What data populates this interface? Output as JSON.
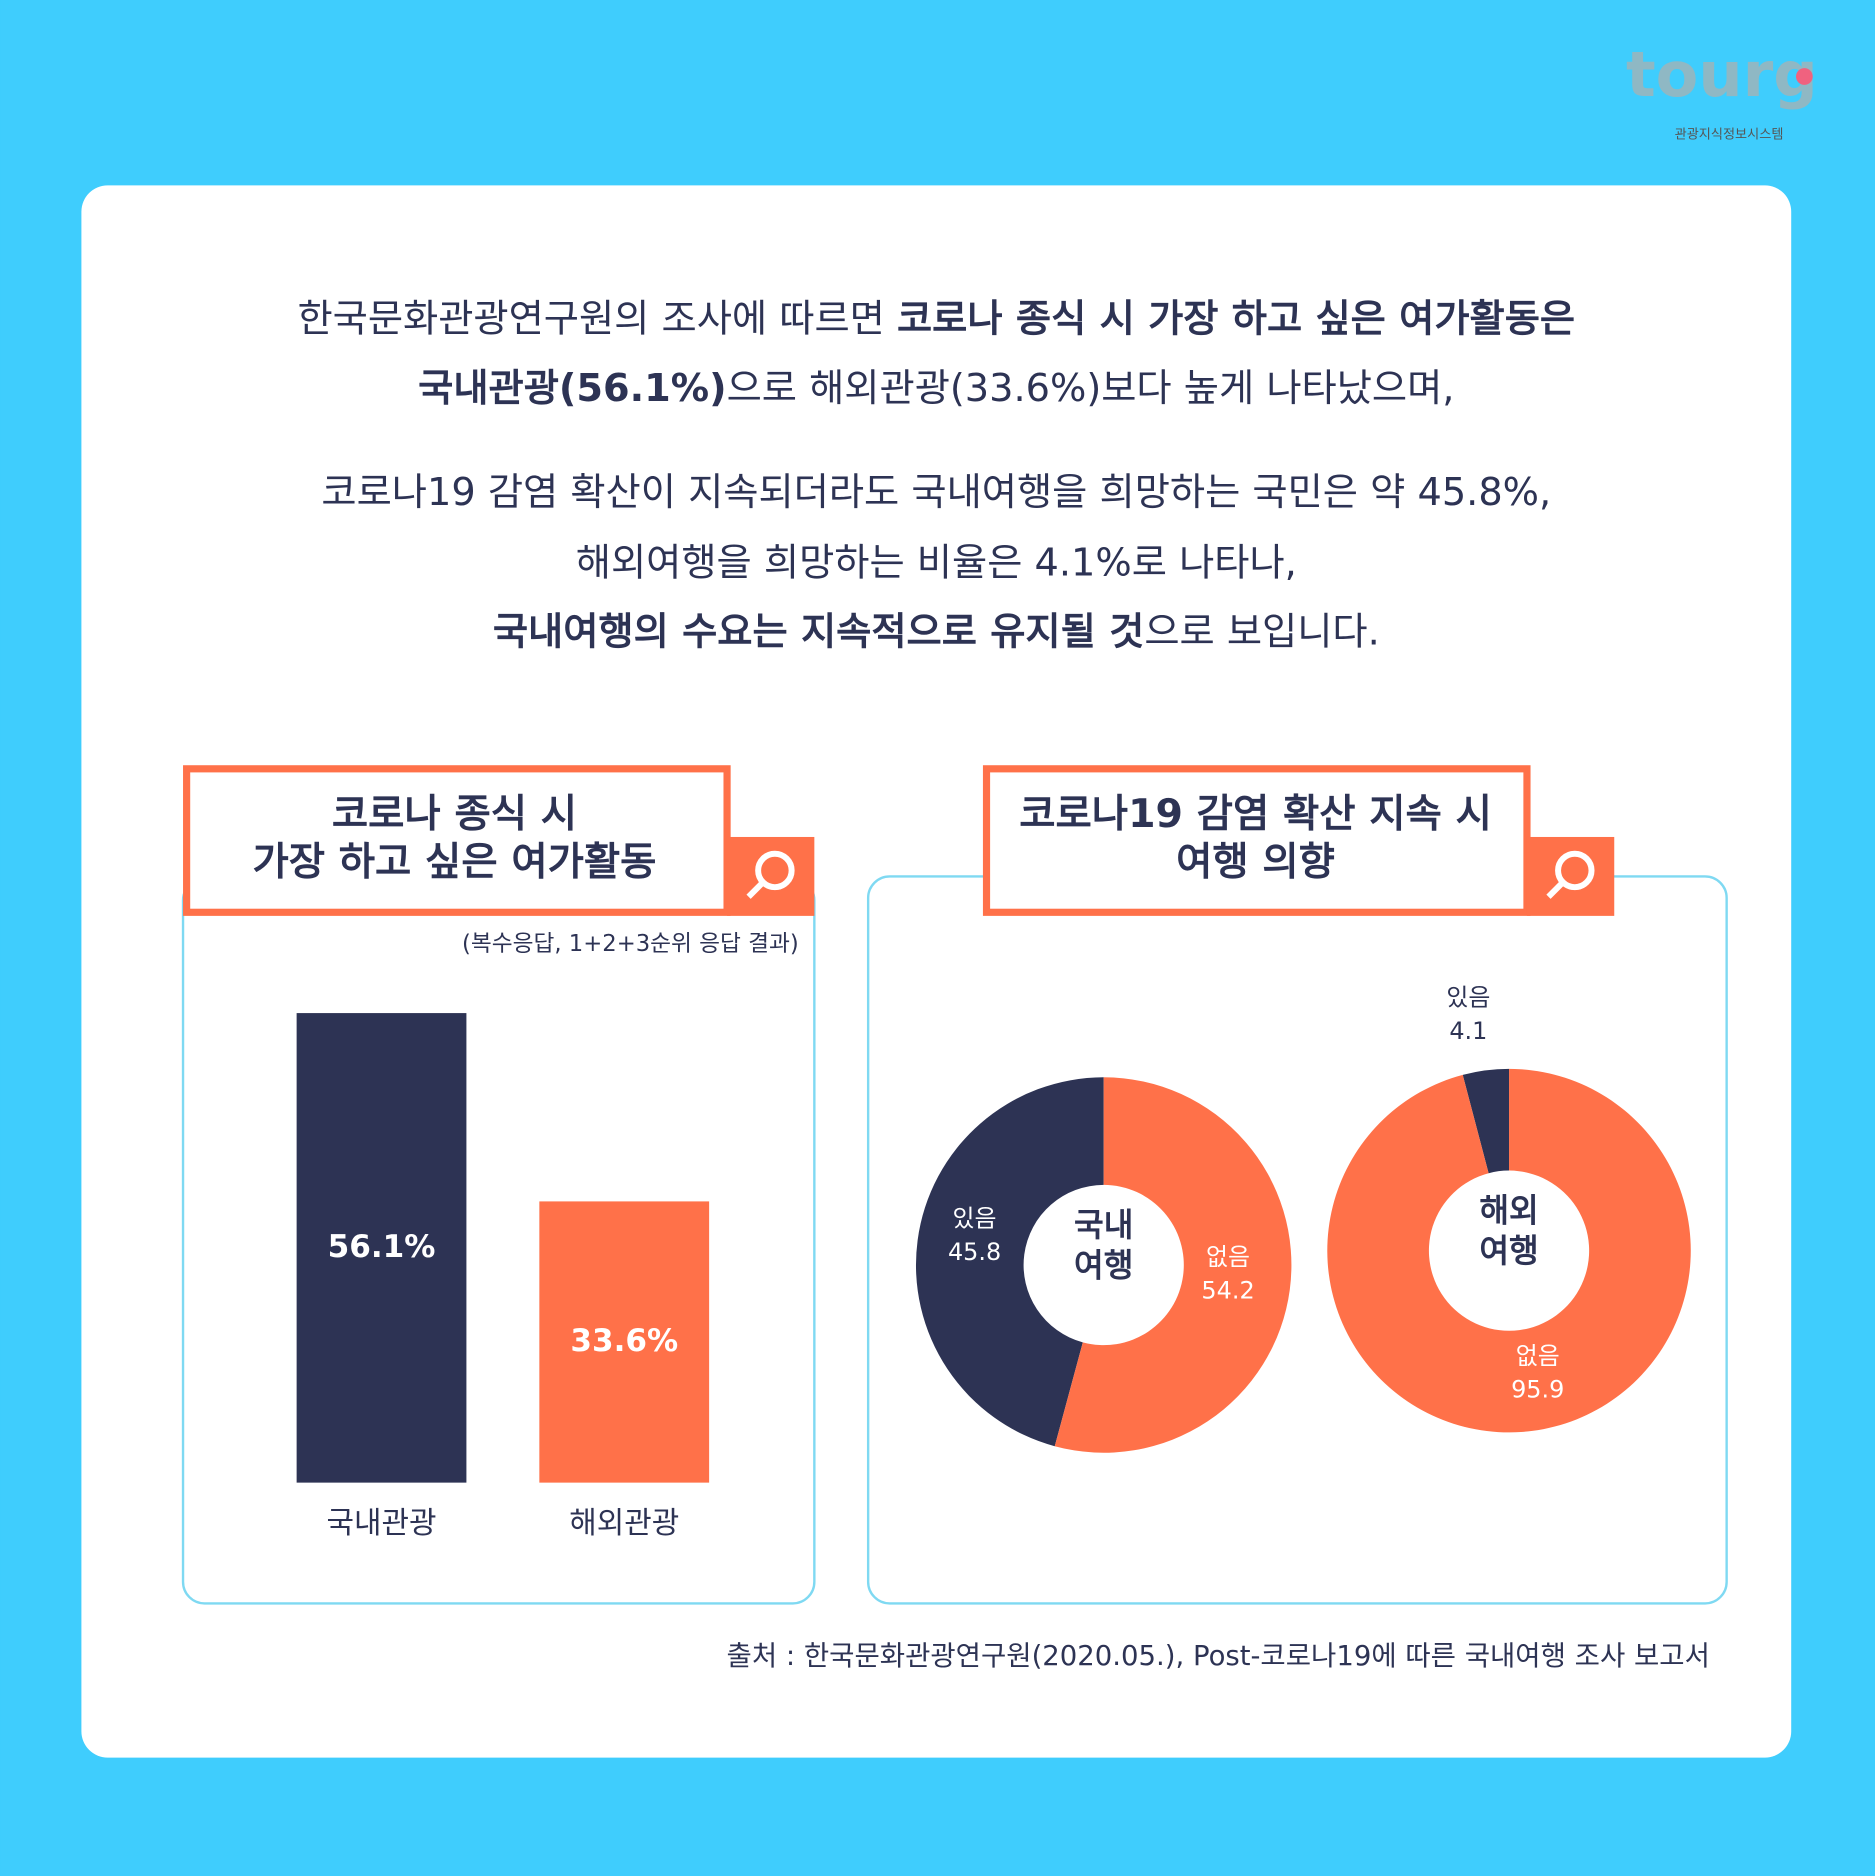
{
  "logo": {
    "wordmark": "tourg",
    "caption": "관광지식정보시스템"
  },
  "intro": {
    "paragraphs": [
      [
        [
          {
            "text": "한국문화관광연구원의 조사에 따르면 "
          },
          {
            "text": "코로나 종식 시 가장 하고 싶은 여가활동은",
            "bold": true
          }
        ],
        [
          {
            "text": "국내관광(56.1%)",
            "bold": true
          },
          {
            "text": "으로 해외관광(33.6%)보다 높게 나타났으며,"
          }
        ]
      ],
      [
        [
          {
            "text": "코로나19 감염 확산이 지속되더라도 국내여행을 희망하는 국민은 약 45.8%,"
          }
        ],
        [
          {
            "text": "해외여행을 희망하는 비율은 4.1%로 나타나,"
          }
        ],
        [
          {
            "text": "국내여행의 수요는 지속적으로 유지될 것",
            "bold": true
          },
          {
            "text": "으로 보입니다."
          }
        ]
      ]
    ]
  },
  "chart_data": [
    {
      "type": "bar",
      "title": [
        "코로나 종식 시",
        "가장 하고 싶은 여가활동"
      ],
      "note": "(복수응답, 1+2+3순위 응답 결과)",
      "categories": [
        "국내관광",
        "해외관광"
      ],
      "values": [
        56.1,
        33.6
      ],
      "value_labels": [
        "56.1%",
        "33.6%"
      ],
      "colors": [
        "#2d3354",
        "#ff7149"
      ]
    },
    {
      "type": "pie",
      "title": [
        "코로나19 감염 확산 지속 시",
        "여행 의향"
      ],
      "colors": [
        "#2d3354",
        "#ff7149"
      ],
      "pies": [
        {
          "center_label": [
            "국내",
            "여행"
          ],
          "categories": [
            "있음",
            "없음"
          ],
          "values": [
            45.8,
            54.2
          ]
        },
        {
          "center_label": [
            "해외",
            "여행"
          ],
          "categories": [
            "있음",
            "없음"
          ],
          "values": [
            4.1,
            95.9
          ]
        }
      ]
    }
  ],
  "source": "출처 : 한국문화관광연구원(2020.05.), Post-코로나19에 따른 국내여행 조사 보고서"
}
